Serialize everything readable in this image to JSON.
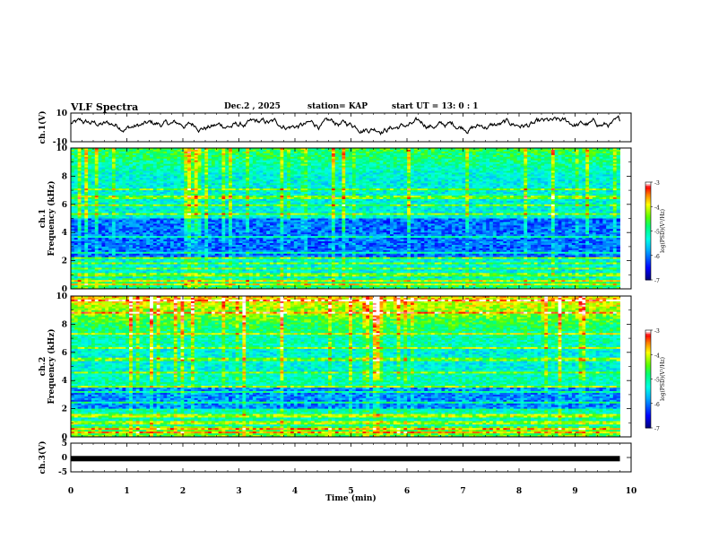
{
  "header": {
    "title": "VLF Spectra",
    "date": "Dec.2 , 2025",
    "station": "station= KAP",
    "start": "start UT =  13: 0  : 1"
  },
  "chart_data": [
    {
      "id": "ch1-waveform",
      "type": "line",
      "ylabel": "ch.1(V)",
      "ylim": [
        -10,
        10
      ],
      "yticks": [
        "10",
        "-10"
      ],
      "xlim": [
        0,
        10
      ],
      "x_end": 9.8,
      "description_color": "#000000"
    },
    {
      "id": "ch1-spectrogram",
      "type": "heatmap",
      "ylabel": "ch.1\nFrequency (kHz)",
      "ylim": [
        0,
        10
      ],
      "yticks": [
        "0",
        "2",
        "4",
        "6",
        "8",
        "10"
      ],
      "xlim": [
        0,
        10
      ],
      "x_end": 9.8,
      "colorbar": {
        "label": "log(PSD)(V²/Hz)",
        "range": [
          -7,
          -3
        ],
        "ticks": [
          "-3",
          "-4",
          "-5",
          "-6",
          "-7"
        ]
      }
    },
    {
      "id": "ch2-spectrogram",
      "type": "heatmap",
      "ylabel": "ch.2\nFrequency (kHz)",
      "ylim": [
        0,
        10
      ],
      "yticks": [
        "0",
        "2",
        "4",
        "6",
        "8",
        "10"
      ],
      "xlim": [
        0,
        10
      ],
      "x_end": 9.8,
      "colorbar": {
        "label": "log(PSD)(V²/Hz)",
        "range": [
          -7,
          -3
        ],
        "ticks": [
          "-3",
          "-4",
          "-5",
          "-6",
          "-7"
        ]
      }
    },
    {
      "id": "ch3-waveform",
      "type": "line",
      "ylabel": "ch.3(V)",
      "ylim": [
        -5,
        5
      ],
      "yticks": [
        "5",
        "0",
        "-5"
      ],
      "level": -0.4,
      "xlim": [
        0,
        10
      ],
      "x_end": 9.8,
      "xlabel": "Time (min)",
      "xticks": [
        "0",
        "1",
        "2",
        "3",
        "4",
        "5",
        "6",
        "7",
        "8",
        "9",
        "10"
      ]
    }
  ],
  "colors": {
    "scale": [
      "#000080",
      "#0000ff",
      "#00a0ff",
      "#00ffff",
      "#00ff80",
      "#40ff00",
      "#ffff00",
      "#ff8000",
      "#ff0000",
      "#ffffff"
    ]
  }
}
